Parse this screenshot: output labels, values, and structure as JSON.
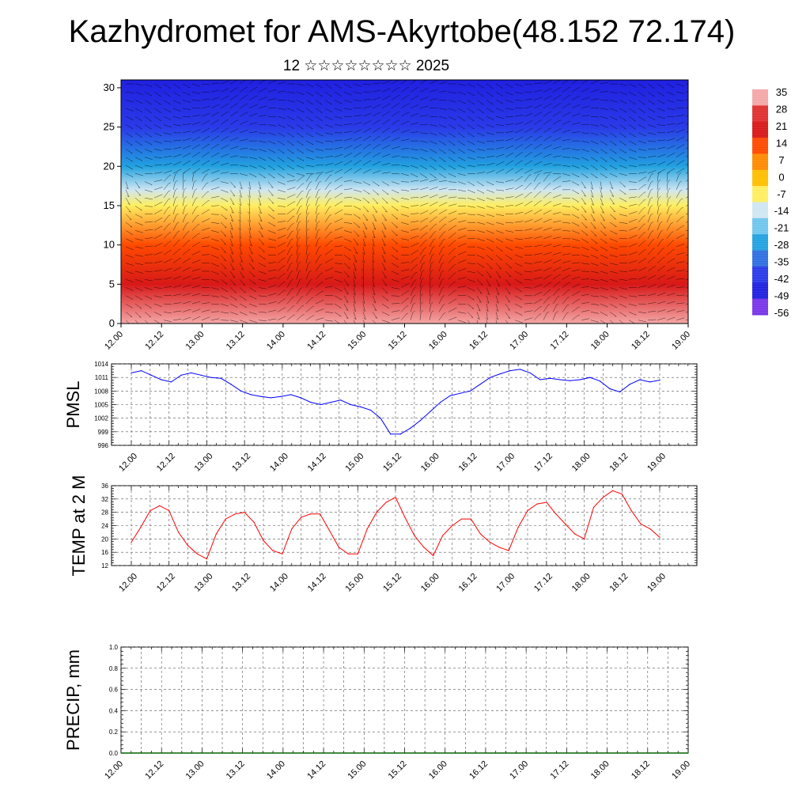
{
  "header": {
    "title": "Kazhydromet for AMS-Akyrtobe(48.152 72.174)",
    "subtitle": "12 ☆☆☆☆☆☆☆☆ 2025"
  },
  "chart_data": [
    {
      "type": "heatmap",
      "name": "vertical-cross-section",
      "x_ticks": [
        "12.00",
        "12.12",
        "13.00",
        "13.12",
        "14.00",
        "14.12",
        "15.00",
        "15.12",
        "16.00",
        "16.12",
        "17.00",
        "17.12",
        "18.00",
        "18.12",
        "19.00"
      ],
      "y_ticks": [
        "0",
        "5",
        "10",
        "15",
        "20",
        "25",
        "30"
      ],
      "ylim": [
        0,
        31
      ],
      "colorbar": {
        "labels": [
          "35",
          "28",
          "21",
          "14",
          "7",
          "0",
          "-7",
          "-14",
          "-21",
          "-28",
          "-35",
          "-42",
          "-49",
          "-56"
        ],
        "colors": [
          "#f4a7a7",
          "#e03030",
          "#d81818",
          "#ff4a00",
          "#ff8a00",
          "#ffbf00",
          "#ffee60",
          "#cfe6f2",
          "#6fc6ee",
          "#22a2e0",
          "#2f6fe0",
          "#2a3ae8",
          "#2020e0",
          "#7a36e8"
        ]
      },
      "levels_temperature": [
        {
          "height": 0,
          "value": 33
        },
        {
          "height": 5,
          "value": 20
        },
        {
          "height": 10,
          "value": 8
        },
        {
          "height": 15,
          "value": -8
        },
        {
          "height": 17,
          "value": -20
        },
        {
          "height": 20,
          "value": -32
        },
        {
          "height": 25,
          "value": -48
        },
        {
          "height": 31,
          "value": -56
        }
      ]
    },
    {
      "type": "line",
      "name": "pmsl",
      "ylabel": "PMSL",
      "ylim": [
        996,
        1014
      ],
      "y_ticks": [
        "1014",
        "1011",
        "1008",
        "1005",
        "1002",
        "999",
        "996"
      ],
      "x_ticks": [
        "12.00",
        "12.12",
        "13.00",
        "13.12",
        "14.00",
        "14.12",
        "15.00",
        "15.12",
        "16.00",
        "16.12",
        "17.00",
        "17.12",
        "18.00",
        "18.12",
        "19.00"
      ],
      "color": "#0000ff",
      "values": [
        1012.0,
        1012.5,
        1011.5,
        1010.5,
        1010.0,
        1011.5,
        1012.0,
        1011.5,
        1011.0,
        1010.8,
        1009.5,
        1008.0,
        1007.2,
        1006.8,
        1006.5,
        1006.8,
        1007.2,
        1006.5,
        1005.5,
        1005.0,
        1005.5,
        1006.0,
        1005.0,
        1004.5,
        1003.8,
        1002.0,
        998.5,
        998.5,
        999.8,
        1001.5,
        1003.5,
        1005.5,
        1007.0,
        1007.5,
        1008.0,
        1009.5,
        1011.0,
        1011.8,
        1012.5,
        1012.8,
        1012.0,
        1010.5,
        1010.8,
        1010.5,
        1010.3,
        1010.5,
        1011.0,
        1010.2,
        1008.5,
        1007.8,
        1009.5,
        1010.5,
        1010.0,
        1010.4
      ]
    },
    {
      "type": "line",
      "name": "temperature-2m",
      "ylabel": "TEMP at 2 M",
      "ylim": [
        12,
        36
      ],
      "y_ticks": [
        "36",
        "32",
        "28",
        "24",
        "20",
        "16",
        "12"
      ],
      "x_ticks": [
        "12.00",
        "12.12",
        "13.00",
        "13.12",
        "14.00",
        "14.12",
        "15.00",
        "15.12",
        "16.00",
        "16.12",
        "17.00",
        "17.12",
        "18.00",
        "18.12",
        "19.00"
      ],
      "color": "#ff0000",
      "values": [
        19.0,
        23.5,
        28.5,
        30.0,
        28.5,
        22.0,
        18.0,
        15.5,
        14.0,
        21.5,
        26.0,
        27.5,
        28.0,
        25.0,
        19.5,
        16.5,
        15.5,
        23.0,
        26.5,
        27.5,
        27.5,
        22.5,
        17.5,
        15.5,
        15.5,
        23.0,
        28.0,
        31.0,
        32.5,
        26.5,
        21.0,
        17.5,
        15.0,
        21.0,
        24.0,
        26.0,
        26.0,
        21.5,
        19.0,
        17.5,
        16.5,
        23.5,
        28.5,
        30.5,
        31.0,
        27.5,
        24.5,
        21.5,
        20.0,
        29.5,
        32.5,
        34.5,
        33.5,
        28.5,
        24.5,
        23.0,
        20.5
      ]
    },
    {
      "type": "line",
      "name": "precipitation",
      "ylabel": "PRECIP, mm",
      "ylim": [
        0,
        1
      ],
      "y_ticks": [
        "1.0",
        "0.8",
        "0.6",
        "0.4",
        "0.2",
        "0.0"
      ],
      "x_ticks": [
        "12.00",
        "12.12",
        "13.00",
        "13.12",
        "14.00",
        "14.12",
        "15.00",
        "15.12",
        "16.00",
        "16.12",
        "17.00",
        "17.12",
        "18.00",
        "18.12",
        "19.00"
      ],
      "color": "#006400",
      "values": [
        0,
        0,
        0,
        0,
        0,
        0,
        0,
        0,
        0,
        0,
        0,
        0,
        0,
        0,
        0,
        0,
        0,
        0,
        0,
        0,
        0,
        0,
        0,
        0,
        0,
        0,
        0,
        0,
        0,
        0,
        0,
        0,
        0,
        0,
        0,
        0,
        0,
        0,
        0,
        0,
        0,
        0,
        0,
        0,
        0,
        0,
        0,
        0,
        0,
        0,
        0,
        0,
        0,
        0,
        0,
        0,
        0
      ]
    }
  ]
}
